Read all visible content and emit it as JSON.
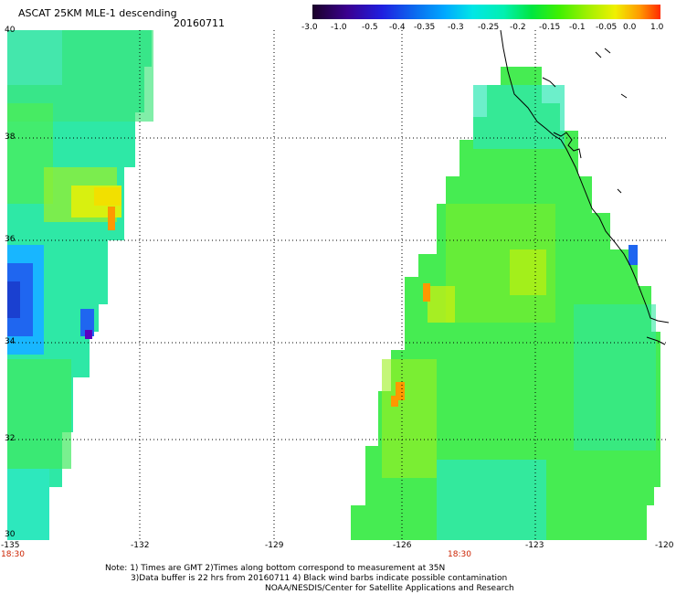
{
  "header": {
    "title": "ASCAT 25KM MLE-1 descending",
    "date": "20160711"
  },
  "colorbar": {
    "labels": [
      "-3.0",
      "-1.0",
      "-0.5",
      "-0.4",
      "-0.35",
      "-0.3",
      "-0.25",
      "-0.2",
      "-0.15",
      "-0.1",
      "-0.05",
      "0.0",
      "1.0"
    ],
    "colors": [
      "#1a0028",
      "#3a0090",
      "#1f1fe0",
      "#0a6ff0",
      "#00a8ff",
      "#00e6e6",
      "#00f0b0",
      "#00e640",
      "#40f000",
      "#a0f000",
      "#f0f000",
      "#ff9a00",
      "#ff2a00"
    ]
  },
  "axes": {
    "lon_labels": [
      "-135",
      "-132",
      "-129",
      "-126",
      "-123",
      "-120"
    ],
    "lat_labels": [
      "40",
      "38",
      "36",
      "34",
      "32",
      "30"
    ],
    "time_labels": [
      "18:30",
      "18:30"
    ]
  },
  "notes": {
    "line1": "Note: 1) Times are GMT 2)Times along bottom correspond to measurement at 35N",
    "line2": "3)Data buffer is 22 hrs from 20160711 4) Black wind barbs indicate possible contamination",
    "line3": "NOAA/NESDIS/Center for Satellite Applications and Research"
  }
}
